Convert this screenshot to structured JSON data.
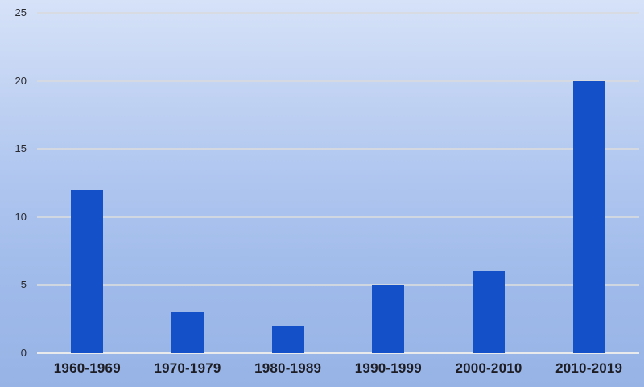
{
  "chart_data": {
    "type": "bar",
    "categories": [
      "1960-1969",
      "1970-1979",
      "1980-1989",
      "1990-1999",
      "2000-2010",
      "2010-2019"
    ],
    "values": [
      12,
      3,
      2,
      5,
      6,
      20
    ],
    "title": "",
    "xlabel": "",
    "ylabel": "",
    "ylim": [
      0,
      25
    ],
    "yticks": [
      0,
      5,
      10,
      15,
      20,
      25
    ],
    "grid": true,
    "legend": false,
    "colors": {
      "bar": "#1450c8",
      "gridline": "#d8dbde",
      "baseline": "#e8eaec",
      "tick_label": "#2a2a31",
      "category_label": "#1d1d23",
      "background_top": "#d6e2f8",
      "background_mid": "#aec5ef",
      "background_bottom": "#97b3e6"
    }
  }
}
